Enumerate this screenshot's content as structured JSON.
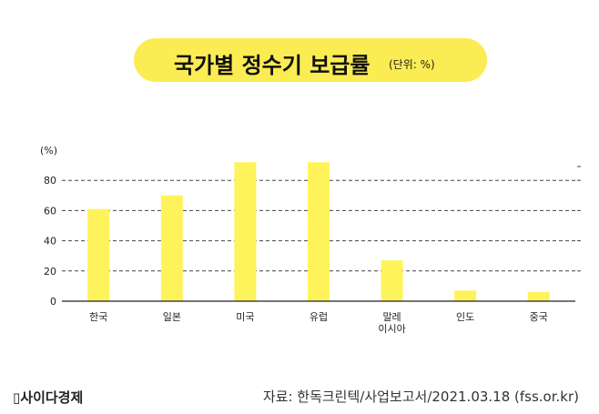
{
  "header": {
    "title": "국가별 정수기 보급률",
    "unit": "(단위: %)"
  },
  "chart_data": {
    "type": "bar",
    "categories": [
      "한국",
      "일본",
      "미국",
      "유럽",
      "말레\n이시아",
      "인도",
      "중국"
    ],
    "values": [
      61,
      70,
      92,
      92,
      27,
      7,
      6
    ],
    "ylabel": "(%)",
    "ylim": [
      0,
      100
    ],
    "yticks": [
      0,
      20,
      40,
      60,
      80
    ],
    "grid": "dashed",
    "bar_color": "#fff35c"
  },
  "footer": {
    "brand": "사이다경제",
    "source": "자료: 한독크린텍/사업보고서/2021.03.18 (fss.or.kr)"
  }
}
